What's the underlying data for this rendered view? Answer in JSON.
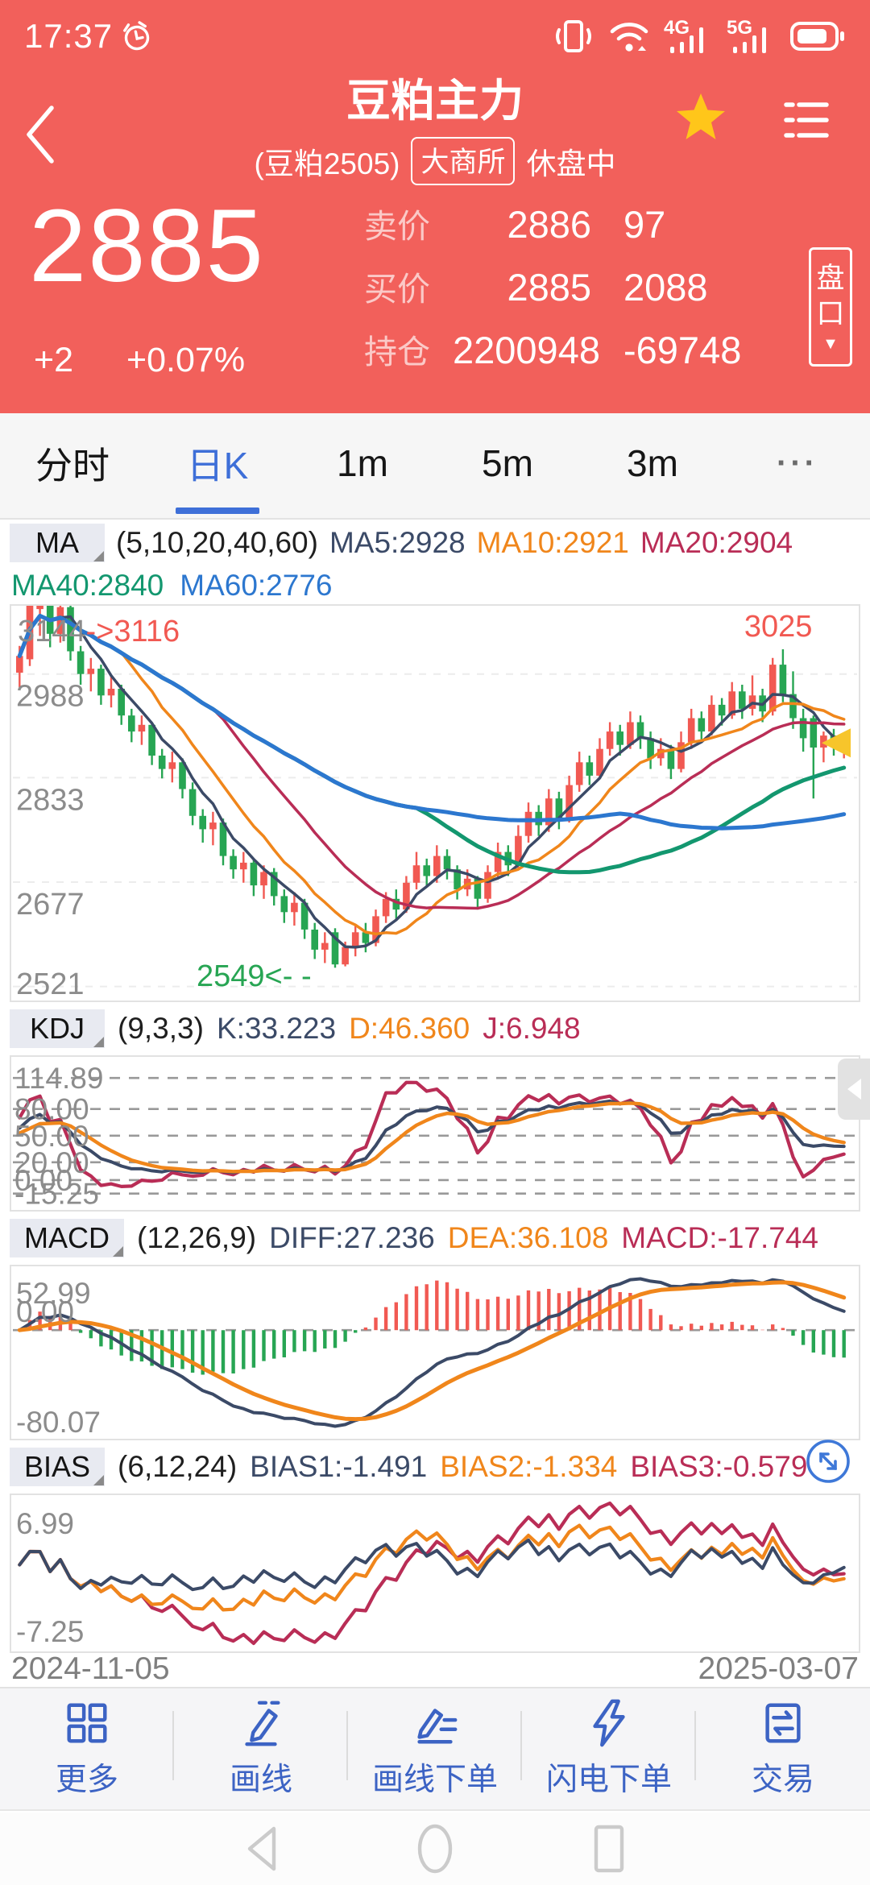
{
  "palette": {
    "app_red": "#F2605B",
    "up": "#F15952",
    "down": "#27A553",
    "navy": "#3B4A67",
    "orange": "#F0861B",
    "crimson": "#B92D56",
    "green": "#13976F",
    "blue": "#2C77CF",
    "tab_active": "#3E6FD8",
    "gold": "#F7C52B",
    "axis_gray": "#8C8C8C",
    "grid_light": "#ECECEC",
    "grid_dark": "#999999",
    "toolbar_blue": "#3C63C4"
  },
  "status_bar": {
    "time": "17:37",
    "icons": [
      "alarm-icon",
      "vibrate-icon",
      "wifi-icon",
      "signal-4g-icon",
      "signal-5g-icon",
      "battery-icon"
    ]
  },
  "header": {
    "title": "豆粕主力",
    "contract": "(豆粕2505)",
    "exchange": "大商所",
    "session_status": "休盘中"
  },
  "quote": {
    "last": "2885",
    "change": "+2",
    "change_pct": "+0.07%",
    "ask_label": "卖价",
    "ask_price": "2886",
    "ask_vol": "97",
    "bid_label": "买价",
    "bid_price": "2885",
    "bid_vol": "2088",
    "oi_label": "持仓",
    "oi_value": "2200948",
    "oi_change": "-69748",
    "depth_label_1": "盘",
    "depth_label_2": "口",
    "depth_arrow": "▼"
  },
  "tabs": {
    "t0": "分时",
    "t1": "日K",
    "t2": "1m",
    "t3": "5m",
    "t4": "3m",
    "more": "···"
  },
  "indicators": {
    "ma": {
      "name": "MA",
      "params": "(5,10,20,40,60)",
      "v1": "MA5:2928",
      "v2": "MA10:2921",
      "v3": "MA20:2904",
      "v4": "MA40:2840",
      "v5": "MA60:2776"
    },
    "kdj": {
      "name": "KDJ",
      "params": "(9,3,3)",
      "v1": "K:33.223",
      "v2": "D:46.360",
      "v3": "J:6.948"
    },
    "macd": {
      "name": "MACD",
      "params": "(12,26,9)",
      "v1": "DIFF:27.236",
      "v2": "DEA:36.108",
      "v3": "MACD:-17.744"
    },
    "bias": {
      "name": "BIAS",
      "params": "(6,12,24)",
      "v1": "BIAS1:-1.491",
      "v2": "BIAS2:-1.334",
      "v3": "BIAS3:-0.579"
    }
  },
  "toolbar": {
    "b0": "更多",
    "b1": "画线",
    "b2": "画线下单",
    "b3": "闪电下单",
    "b4": "交易",
    "icons": [
      "grid-more-icon",
      "draw-line-pencil-icon",
      "draw-order-pencil-icon",
      "lightning-icon",
      "trade-transfer-icon"
    ]
  },
  "navbar_icons": [
    "android-back-icon",
    "android-home-icon",
    "android-recents-icon"
  ],
  "chart_data": {
    "type": "candlestick",
    "x_range": {
      "start": "2024-11-05",
      "end": "2025-03-07"
    },
    "main": {
      "domain": [
        2500,
        3090
      ],
      "y_grid": [
        2988,
        2833,
        2677,
        2521
      ],
      "high_label_gray": "3144",
      "high_label_red": "->3116",
      "peak_label": "3025",
      "low_label": "2549<- -",
      "last": 2885,
      "ma_periods": [
        5,
        10,
        20,
        40,
        60
      ],
      "candles": [
        [
          2990,
          3015,
          2968,
          3030
        ],
        [
          3010,
          3095,
          3000,
          3110
        ],
        [
          3085,
          3115,
          3045,
          3144
        ],
        [
          3115,
          3048,
          3028,
          3130
        ],
        [
          3048,
          3088,
          3035,
          3116
        ],
        [
          3088,
          3022,
          3008,
          3095
        ],
        [
          3022,
          2988,
          2972,
          3030
        ],
        [
          2988,
          2996,
          2962,
          3012
        ],
        [
          2996,
          2956,
          2942,
          3002
        ],
        [
          2956,
          2966,
          2938,
          2986
        ],
        [
          2966,
          2926,
          2912,
          2972
        ],
        [
          2926,
          2902,
          2886,
          2936
        ],
        [
          2902,
          2912,
          2882,
          2926
        ],
        [
          2912,
          2866,
          2852,
          2916
        ],
        [
          2866,
          2846,
          2832,
          2876
        ],
        [
          2846,
          2856,
          2826,
          2872
        ],
        [
          2856,
          2816,
          2802,
          2862
        ],
        [
          2816,
          2776,
          2762,
          2826
        ],
        [
          2776,
          2756,
          2736,
          2786
        ],
        [
          2756,
          2766,
          2732,
          2782
        ],
        [
          2766,
          2716,
          2702,
          2772
        ],
        [
          2716,
          2696,
          2682,
          2726
        ],
        [
          2696,
          2706,
          2676,
          2722
        ],
        [
          2706,
          2672,
          2656,
          2712
        ],
        [
          2672,
          2692,
          2652,
          2702
        ],
        [
          2692,
          2656,
          2642,
          2698
        ],
        [
          2656,
          2632,
          2616,
          2666
        ],
        [
          2632,
          2646,
          2612,
          2662
        ],
        [
          2646,
          2606,
          2592,
          2652
        ],
        [
          2606,
          2576,
          2562,
          2616
        ],
        [
          2576,
          2586,
          2556,
          2602
        ],
        [
          2602,
          2554,
          2549,
          2608
        ],
        [
          2554,
          2580,
          2551,
          2588
        ],
        [
          2580,
          2602,
          2566,
          2612
        ],
        [
          2602,
          2586,
          2572,
          2616
        ],
        [
          2586,
          2626,
          2581,
          2636
        ],
        [
          2626,
          2652,
          2616,
          2662
        ],
        [
          2652,
          2636,
          2621,
          2666
        ],
        [
          2636,
          2676,
          2631,
          2686
        ],
        [
          2676,
          2702,
          2666,
          2722
        ],
        [
          2702,
          2686,
          2671,
          2712
        ],
        [
          2686,
          2716,
          2676,
          2732
        ],
        [
          2716,
          2696,
          2681,
          2726
        ],
        [
          2696,
          2666,
          2651,
          2702
        ],
        [
          2666,
          2682,
          2656,
          2696
        ],
        [
          2682,
          2652,
          2636,
          2686
        ],
        [
          2652,
          2692,
          2646,
          2702
        ],
        [
          2692,
          2722,
          2682,
          2736
        ],
        [
          2722,
          2702,
          2686,
          2732
        ],
        [
          2702,
          2746,
          2696,
          2762
        ],
        [
          2746,
          2782,
          2736,
          2796
        ],
        [
          2782,
          2762,
          2746,
          2792
        ],
        [
          2762,
          2802,
          2752,
          2816
        ],
        [
          2802,
          2772,
          2756,
          2812
        ],
        [
          2772,
          2822,
          2766,
          2836
        ],
        [
          2822,
          2856,
          2812,
          2872
        ],
        [
          2856,
          2836,
          2822,
          2866
        ],
        [
          2836,
          2876,
          2831,
          2892
        ],
        [
          2876,
          2902,
          2866,
          2916
        ],
        [
          2902,
          2882,
          2866,
          2912
        ],
        [
          2882,
          2916,
          2876,
          2932
        ],
        [
          2916,
          2892,
          2876,
          2926
        ],
        [
          2892,
          2862,
          2846,
          2902
        ],
        [
          2862,
          2876,
          2851,
          2892
        ],
        [
          2876,
          2846,
          2831,
          2882
        ],
        [
          2846,
          2886,
          2841,
          2902
        ],
        [
          2886,
          2922,
          2876,
          2936
        ],
        [
          2922,
          2902,
          2886,
          2932
        ],
        [
          2902,
          2942,
          2896,
          2956
        ],
        [
          2942,
          2926,
          2911,
          2952
        ],
        [
          2926,
          2962,
          2921,
          2976
        ],
        [
          2962,
          2936,
          2921,
          2972
        ],
        [
          2936,
          2956,
          2926,
          2986
        ],
        [
          2956,
          2932,
          2916,
          2966
        ],
        [
          2932,
          3002,
          2926,
          3012
        ],
        [
          3002,
          2958,
          2946,
          3025
        ],
        [
          2958,
          2922,
          2906,
          2992
        ],
        [
          2922,
          2892,
          2872,
          2936
        ],
        [
          2922,
          2878,
          2802,
          2926
        ],
        [
          2878,
          2896,
          2856,
          2902
        ],
        [
          2896,
          2882,
          2866,
          2906
        ],
        [
          2882,
          2885,
          2862,
          2896
        ]
      ]
    },
    "kdj": {
      "params": [
        9,
        3,
        3
      ],
      "k": 33.223,
      "d": 46.36,
      "j": 6.948,
      "grid_labels": [
        "114.89",
        "80.00",
        "50.00",
        "20.00",
        "0.00",
        "-15.25"
      ],
      "grid_values": [
        114.89,
        80,
        50,
        20,
        0,
        -15.25
      ],
      "plot_domain": [
        -30,
        135
      ]
    },
    "macd": {
      "params": [
        12,
        26,
        9
      ],
      "diff": 27.236,
      "dea": 36.108,
      "macd": -17.744,
      "label_top": "52.99",
      "label_zero": "0.00",
      "label_bottom": "-80.07"
    },
    "bias": {
      "params": [
        6,
        12,
        24
      ],
      "bias1": -1.491,
      "bias2": -1.334,
      "bias3": -0.579,
      "label_top": "6.99",
      "label_bottom": "-7.25"
    }
  }
}
